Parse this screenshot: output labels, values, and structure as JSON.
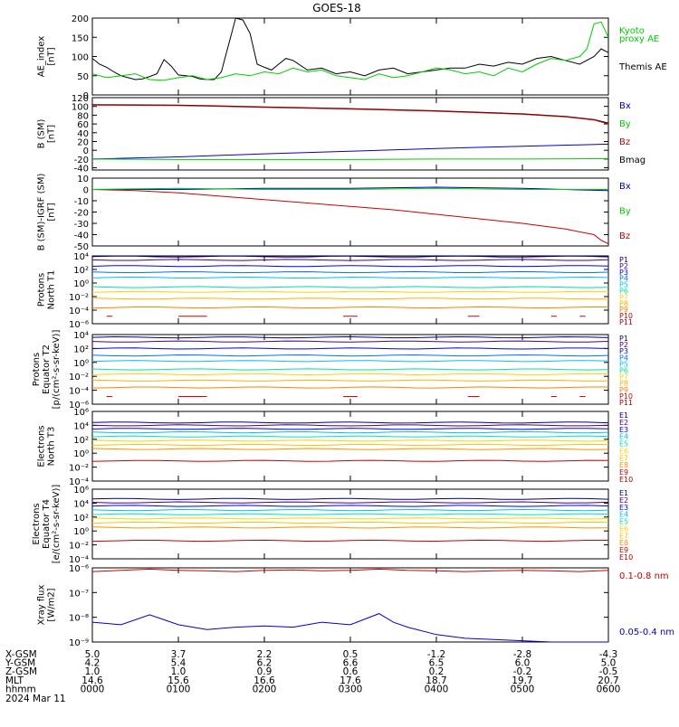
{
  "title": "GOES-18",
  "footer_date": "2024 Mar 11",
  "chart_data": [
    {
      "type": "line",
      "ylabel": [
        "AE_index",
        "[nT]"
      ],
      "ylim": [
        0,
        200
      ],
      "yticks": [
        "0",
        "50",
        "100",
        "150",
        "200"
      ],
      "legend": [
        {
          "name": "Kyoto",
          "color": "#00cc00"
        },
        {
          "name": "proxy AE",
          "color": "#00cc00"
        },
        {
          "name": "Themis AE",
          "color": "#000000"
        }
      ],
      "series": [
        {
          "name": "Themis AE",
          "color": "#000000",
          "x": [
            0,
            5,
            10,
            15,
            20,
            25,
            30,
            35,
            40,
            45,
            50,
            55,
            60,
            65,
            70,
            75,
            80,
            85,
            90,
            95,
            100,
            105,
            110,
            115,
            120,
            125,
            130,
            135,
            140,
            150,
            160,
            170,
            180,
            190,
            200,
            210,
            220,
            230,
            240,
            250,
            260,
            270,
            280,
            290,
            300,
            310,
            320,
            330,
            340,
            350,
            355,
            360
          ],
          "y": [
            95,
            80,
            72,
            60,
            50,
            45,
            40,
            42,
            48,
            55,
            92,
            75,
            52,
            50,
            48,
            42,
            40,
            40,
            60,
            130,
            200,
            195,
            160,
            80,
            72,
            65,
            80,
            95,
            90,
            65,
            70,
            55,
            60,
            50,
            65,
            70,
            55,
            60,
            65,
            70,
            70,
            80,
            75,
            85,
            80,
            95,
            100,
            90,
            80,
            100,
            120,
            110
          ]
        },
        {
          "name": "Kyoto proxy AE",
          "color": "#00cc00",
          "x": [
            0,
            10,
            20,
            30,
            40,
            50,
            60,
            70,
            80,
            90,
            100,
            110,
            120,
            130,
            140,
            150,
            160,
            170,
            180,
            190,
            200,
            210,
            220,
            230,
            240,
            250,
            260,
            270,
            280,
            290,
            300,
            310,
            320,
            330,
            340,
            345,
            350,
            355,
            360
          ],
          "y": [
            55,
            45,
            50,
            55,
            40,
            38,
            45,
            50,
            40,
            45,
            55,
            50,
            60,
            55,
            70,
            60,
            65,
            50,
            45,
            40,
            55,
            45,
            50,
            60,
            70,
            65,
            55,
            60,
            50,
            70,
            60,
            80,
            95,
            90,
            100,
            120,
            185,
            190,
            150
          ]
        }
      ]
    },
    {
      "type": "line",
      "ylabel": [
        "B (SM)",
        "[nT]"
      ],
      "ylim": [
        -45,
        120
      ],
      "yticks": [
        "-40",
        "-20",
        "0",
        "20",
        "40",
        "60",
        "80",
        "100",
        "120"
      ],
      "legend": [
        {
          "name": "Bx",
          "color": "#0000cc"
        },
        {
          "name": "By",
          "color": "#00cc00"
        },
        {
          "name": "Bz",
          "color": "#cc0000"
        },
        {
          "name": "Bmag",
          "color": "#000000"
        }
      ],
      "series": [
        {
          "name": "Bmag",
          "color": "#000000",
          "x": [
            0,
            60,
            120,
            180,
            240,
            300,
            330,
            350,
            360
          ],
          "y": [
            104,
            103,
            99,
            95,
            90,
            83,
            77,
            70,
            62
          ]
        },
        {
          "name": "Bz",
          "color": "#cc0000",
          "x": [
            0,
            60,
            120,
            180,
            240,
            300,
            330,
            350,
            360
          ],
          "y": [
            103,
            102,
            98,
            94,
            89,
            82,
            76,
            69,
            60
          ]
        },
        {
          "name": "Bx",
          "color": "#0000cc",
          "x": [
            0,
            60,
            120,
            180,
            240,
            300,
            360
          ],
          "y": [
            -20,
            -15,
            -8,
            -2,
            4,
            9,
            14
          ]
        },
        {
          "name": "By",
          "color": "#00cc00",
          "x": [
            0,
            60,
            120,
            180,
            240,
            300,
            360
          ],
          "y": [
            -20,
            -21,
            -21,
            -21,
            -20,
            -20,
            -19
          ]
        }
      ]
    },
    {
      "type": "line",
      "ylabel": [
        "B (SM)-IGRF (SM)",
        "[nT]"
      ],
      "ylim": [
        -50,
        10
      ],
      "yticks": [
        "-50",
        "-40",
        "-30",
        "-20",
        "-10",
        "0",
        "10"
      ],
      "legend": [
        {
          "name": "Bx",
          "color": "#0000cc"
        },
        {
          "name": "By",
          "color": "#00cc00"
        },
        {
          "name": "Bz",
          "color": "#cc0000"
        }
      ],
      "series": [
        {
          "name": "Bz",
          "color": "#cc0000",
          "x": [
            0,
            30,
            60,
            90,
            120,
            150,
            180,
            210,
            240,
            270,
            300,
            330,
            350,
            355,
            360
          ],
          "y": [
            0,
            -1,
            -3,
            -6,
            -9,
            -12,
            -15,
            -18,
            -22,
            -26,
            -30,
            -35,
            -40,
            -45,
            -48
          ]
        },
        {
          "name": "Bx",
          "color": "#0000cc",
          "x": [
            0,
            60,
            120,
            180,
            240,
            300,
            360
          ],
          "y": [
            0,
            0,
            1,
            1,
            2,
            1,
            -1
          ]
        },
        {
          "name": "By",
          "color": "#00cc00",
          "x": [
            0,
            60,
            120,
            180,
            240,
            300,
            360
          ],
          "y": [
            0,
            1,
            0,
            0,
            1,
            0,
            0
          ]
        }
      ]
    },
    {
      "type": "line",
      "ylabel": [
        "Protons",
        "North T1"
      ],
      "ylog": [
        -6,
        4
      ],
      "yticks": [
        "10⁴",
        "10²",
        "10⁰",
        "10⁻²",
        "10⁻⁴",
        "10⁻⁶"
      ],
      "ytick_exps": [
        4,
        2,
        0,
        -2,
        -4,
        -6
      ],
      "legend": [
        {
          "name": "P1",
          "color": "#000080"
        },
        {
          "name": "P2",
          "color": "#4b0082"
        },
        {
          "name": "P3",
          "color": "#0000ff"
        },
        {
          "name": "P4",
          "color": "#0070ff"
        },
        {
          "name": "P5",
          "color": "#00c0ff"
        },
        {
          "name": "P6",
          "color": "#00e0a0"
        },
        {
          "name": "P7",
          "color": "#ffd000"
        },
        {
          "name": "P8",
          "color": "#ffb000"
        },
        {
          "name": "P9",
          "color": "#ff8000"
        },
        {
          "name": "P10",
          "color": "#cc0000"
        },
        {
          "name": "P11",
          "color": "#aa0000"
        }
      ],
      "levels_log10": [
        3.9,
        3.4,
        2.5,
        1.6,
        0.8,
        -0.6,
        -1.3,
        -2.3,
        -3.6
      ],
      "sparse_log10": -4.9
    },
    {
      "type": "line",
      "ylabel": [
        "Protons",
        "Equator T2",
        "[p/(cm²-s-sr-keV)]"
      ],
      "ylog": [
        -6,
        4
      ],
      "yticks": [
        "10⁴",
        "10²",
        "10⁰",
        "10⁻²",
        "10⁻⁴",
        "10⁻⁶"
      ],
      "ytick_exps": [
        4,
        2,
        0,
        -2,
        -4,
        -6
      ],
      "legend": [
        {
          "name": "P1",
          "color": "#000080"
        },
        {
          "name": "P2",
          "color": "#4b0082"
        },
        {
          "name": "P3",
          "color": "#0000ff"
        },
        {
          "name": "P4",
          "color": "#0070ff"
        },
        {
          "name": "P5",
          "color": "#00c0ff"
        },
        {
          "name": "P6",
          "color": "#00e0a0"
        },
        {
          "name": "P7",
          "color": "#ffd000"
        },
        {
          "name": "P8",
          "color": "#ffb000"
        },
        {
          "name": "P9",
          "color": "#ff8000"
        },
        {
          "name": "P10",
          "color": "#cc0000"
        },
        {
          "name": "P11",
          "color": "#aa0000"
        }
      ],
      "levels_log10": [
        3.6,
        3.0,
        2.0,
        1.0,
        0.2,
        -1.0,
        -1.7,
        -2.6,
        -3.6
      ],
      "sparse_log10": -4.9
    },
    {
      "type": "line",
      "ylabel": [
        "Electrons",
        "North T3"
      ],
      "ylog": [
        -4,
        6
      ],
      "yticks": [
        "10⁶",
        "10⁴",
        "10²",
        "10⁰",
        "10⁻²",
        "10⁻⁴"
      ],
      "ytick_exps": [
        6,
        4,
        2,
        0,
        -2,
        -4
      ],
      "legend": [
        {
          "name": "E1",
          "color": "#000080"
        },
        {
          "name": "E2",
          "color": "#4b0082"
        },
        {
          "name": "E3",
          "color": "#0000ff"
        },
        {
          "name": "E4",
          "color": "#00c0ff"
        },
        {
          "name": "E5",
          "color": "#00e0c0"
        },
        {
          "name": "E6",
          "color": "#ffd000"
        },
        {
          "name": "E7",
          "color": "#ffc000"
        },
        {
          "name": "E8",
          "color": "#ff9000"
        },
        {
          "name": "E9",
          "color": "#cc0000"
        },
        {
          "name": "E10",
          "color": "#aa0000"
        }
      ],
      "levels_log10": [
        4.4,
        4.0,
        3.5,
        3.0,
        2.4,
        1.8,
        1.2,
        0.6,
        -1.1
      ]
    },
    {
      "type": "line",
      "ylabel": [
        "Electrons",
        "Equator T4",
        "[e/(cm²-s-sr-keV)]"
      ],
      "ylog": [
        -4,
        6
      ],
      "yticks": [
        "10⁶",
        "10⁴",
        "10²",
        "10⁰",
        "10⁻²",
        "10⁻⁴"
      ],
      "ytick_exps": [
        6,
        4,
        2,
        0,
        -2,
        -4
      ],
      "legend": [
        {
          "name": "E1",
          "color": "#000080"
        },
        {
          "name": "E2",
          "color": "#4b0082"
        },
        {
          "name": "E3",
          "color": "#0000ff"
        },
        {
          "name": "E4",
          "color": "#00c0ff"
        },
        {
          "name": "E5",
          "color": "#00e0c0"
        },
        {
          "name": "E6",
          "color": "#ffd000"
        },
        {
          "name": "E7",
          "color": "#ffc000"
        },
        {
          "name": "E8",
          "color": "#ff9000"
        },
        {
          "name": "E9",
          "color": "#cc0000"
        },
        {
          "name": "E10",
          "color": "#aa0000"
        }
      ],
      "levels_log10": [
        4.6,
        4.1,
        3.6,
        3.0,
        2.4,
        1.8,
        1.2,
        0.5,
        -1.4
      ]
    },
    {
      "type": "line",
      "ylabel": [
        "Xray flux",
        "[W/m2]"
      ],
      "ylog": [
        -9,
        -6
      ],
      "yticks": [
        "10⁻⁶",
        "10⁻⁷",
        "10⁻⁸",
        "10⁻⁹"
      ],
      "ytick_exps": [
        -6,
        -7,
        -8,
        -9
      ],
      "legend": [
        {
          "name": "0.1-0.8 nm",
          "color": "#cc0000"
        },
        {
          "name": "0.05-0.4 nm",
          "color": "#0000cc"
        }
      ],
      "series": [
        {
          "name": "0.1-0.8 nm",
          "color": "#cc0000",
          "x": [
            0,
            20,
            40,
            60,
            80,
            100,
            120,
            140,
            160,
            180,
            200,
            220,
            240,
            260,
            280,
            300,
            320,
            340,
            360
          ],
          "y_log10": [
            -6.15,
            -6.1,
            -6.05,
            -6.1,
            -6.12,
            -6.15,
            -6.1,
            -6.08,
            -6.12,
            -6.1,
            -6.05,
            -6.1,
            -6.12,
            -6.15,
            -6.12,
            -6.1,
            -6.12,
            -6.15,
            -6.1
          ]
        },
        {
          "name": "0.05-0.4 nm",
          "color": "#0000cc",
          "x": [
            0,
            20,
            40,
            50,
            60,
            80,
            100,
            120,
            140,
            160,
            180,
            200,
            210,
            220,
            240,
            260,
            280,
            300,
            320,
            340,
            360
          ],
          "y_log10": [
            -8.2,
            -8.3,
            -7.9,
            -8.1,
            -8.3,
            -8.5,
            -8.4,
            -8.35,
            -8.4,
            -8.2,
            -8.3,
            -7.85,
            -8.2,
            -8.4,
            -8.7,
            -8.85,
            -8.9,
            -8.95,
            -9.0,
            -9.0,
            -9.0
          ]
        }
      ]
    }
  ],
  "footer": {
    "labels": [
      "X-GSM",
      "Y-GSM",
      "Z-GSM",
      "MLT",
      "hhmm"
    ],
    "columns": [
      [
        "5.0",
        "4.2",
        "1.0",
        "14.6",
        "0000"
      ],
      [
        "3.7",
        "5.4",
        "1.0",
        "15.6",
        "0100"
      ],
      [
        "2.2",
        "6.2",
        "0.9",
        "16.6",
        "0200"
      ],
      [
        "0.5",
        "6.6",
        "0.6",
        "17.6",
        "0300"
      ],
      [
        "-1.2",
        "6.5",
        "0.2",
        "18.7",
        "0400"
      ],
      [
        "-2.8",
        "6.0",
        "-0.2",
        "19.7",
        "0500"
      ],
      [
        "-4.3",
        "5.0",
        "-0.5",
        "20.7",
        "0600"
      ]
    ]
  }
}
